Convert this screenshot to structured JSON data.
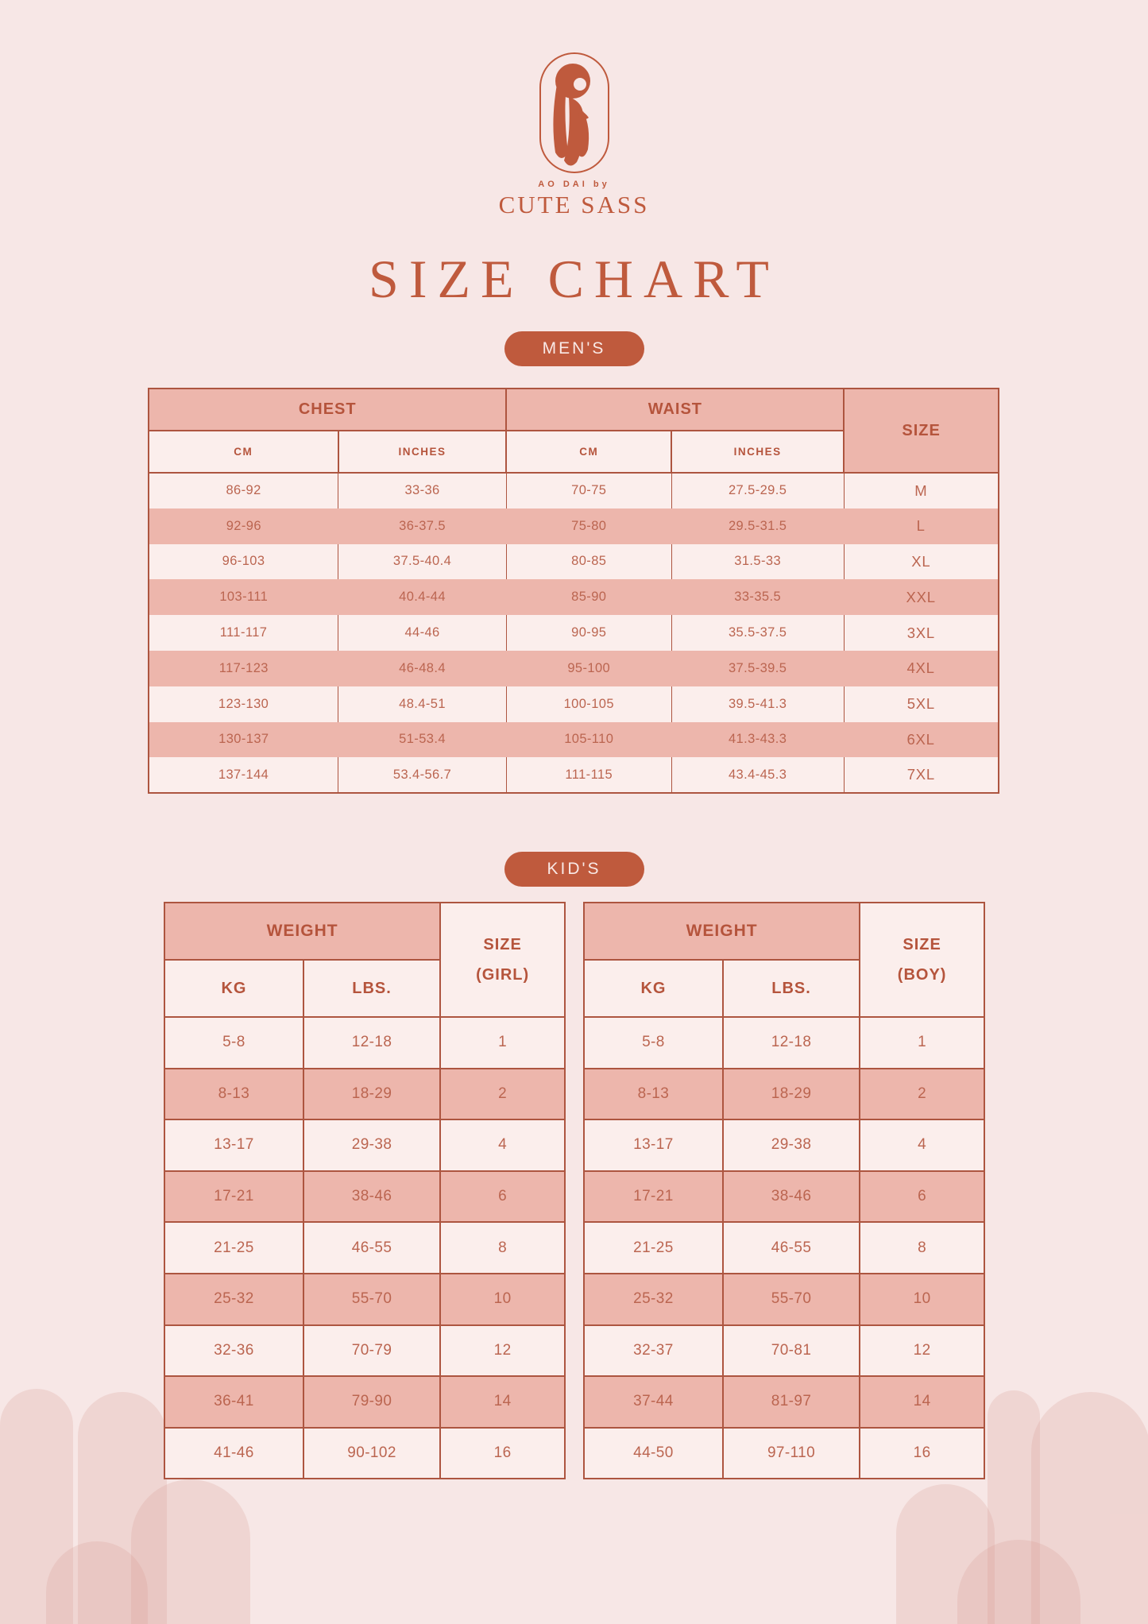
{
  "brand": {
    "logo_icon": "woman-in-ao-dai-oval-emblem",
    "tagline": "AO DAI by",
    "name": "CUTE SASS"
  },
  "title": "SIZE CHART",
  "sections": {
    "mens": {
      "badge": "MEN'S",
      "table": {
        "group_headers": [
          "CHEST",
          "WAIST",
          "SIZE"
        ],
        "sub_headers": [
          "CM",
          "INCHES",
          "CM",
          "INCHES"
        ],
        "rows": [
          [
            "86-92",
            "33-36",
            "70-75",
            "27.5-29.5",
            "M"
          ],
          [
            "92-96",
            "36-37.5",
            "75-80",
            "29.5-31.5",
            "L"
          ],
          [
            "96-103",
            "37.5-40.4",
            "80-85",
            "31.5-33",
            "XL"
          ],
          [
            "103-111",
            "40.4-44",
            "85-90",
            "33-35.5",
            "XXL"
          ],
          [
            "111-117",
            "44-46",
            "90-95",
            "35.5-37.5",
            "3XL"
          ],
          [
            "117-123",
            "46-48.4",
            "95-100",
            "37.5-39.5",
            "4XL"
          ],
          [
            "123-130",
            "48.4-51",
            "100-105",
            "39.5-41.3",
            "5XL"
          ],
          [
            "130-137",
            "51-53.4",
            "105-110",
            "41.3-43.3",
            "6XL"
          ],
          [
            "137-144",
            "53.4-56.7",
            "111-115",
            "43.4-45.3",
            "7XL"
          ]
        ]
      }
    },
    "kids": {
      "badge": "KID'S",
      "girls_table": {
        "weight_header": "WEIGHT",
        "size_header_line1": "SIZE",
        "size_header_line2": "(GIRL)",
        "sub_headers": [
          "KG",
          "LBS."
        ],
        "rows": [
          [
            "5-8",
            "12-18",
            "1"
          ],
          [
            "8-13",
            "18-29",
            "2"
          ],
          [
            "13-17",
            "29-38",
            "4"
          ],
          [
            "17-21",
            "38-46",
            "6"
          ],
          [
            "21-25",
            "46-55",
            "8"
          ],
          [
            "25-32",
            "55-70",
            "10"
          ],
          [
            "32-36",
            "70-79",
            "12"
          ],
          [
            "36-41",
            "79-90",
            "14"
          ],
          [
            "41-46",
            "90-102",
            "16"
          ]
        ]
      },
      "boys_table": {
        "weight_header": "WEIGHT",
        "size_header_line1": "SIZE",
        "size_header_line2": "(BOY)",
        "sub_headers": [
          "KG",
          "LBS."
        ],
        "rows": [
          [
            "5-8",
            "12-18",
            "1"
          ],
          [
            "8-13",
            "18-29",
            "2"
          ],
          [
            "13-17",
            "29-38",
            "4"
          ],
          [
            "17-21",
            "38-46",
            "6"
          ],
          [
            "21-25",
            "46-55",
            "8"
          ],
          [
            "25-32",
            "55-70",
            "10"
          ],
          [
            "32-37",
            "70-81",
            "12"
          ],
          [
            "37-44",
            "81-97",
            "14"
          ],
          [
            "44-50",
            "97-110",
            "16"
          ]
        ]
      }
    }
  },
  "colors": {
    "background": "#f7e7e6",
    "row_light": "#fbeeec",
    "row_dark": "#edb6ac",
    "accent": "#bf5a3d",
    "table_border": "#ad5540",
    "value_text": "#bb6550",
    "badge_text": "#f9e9e6"
  }
}
